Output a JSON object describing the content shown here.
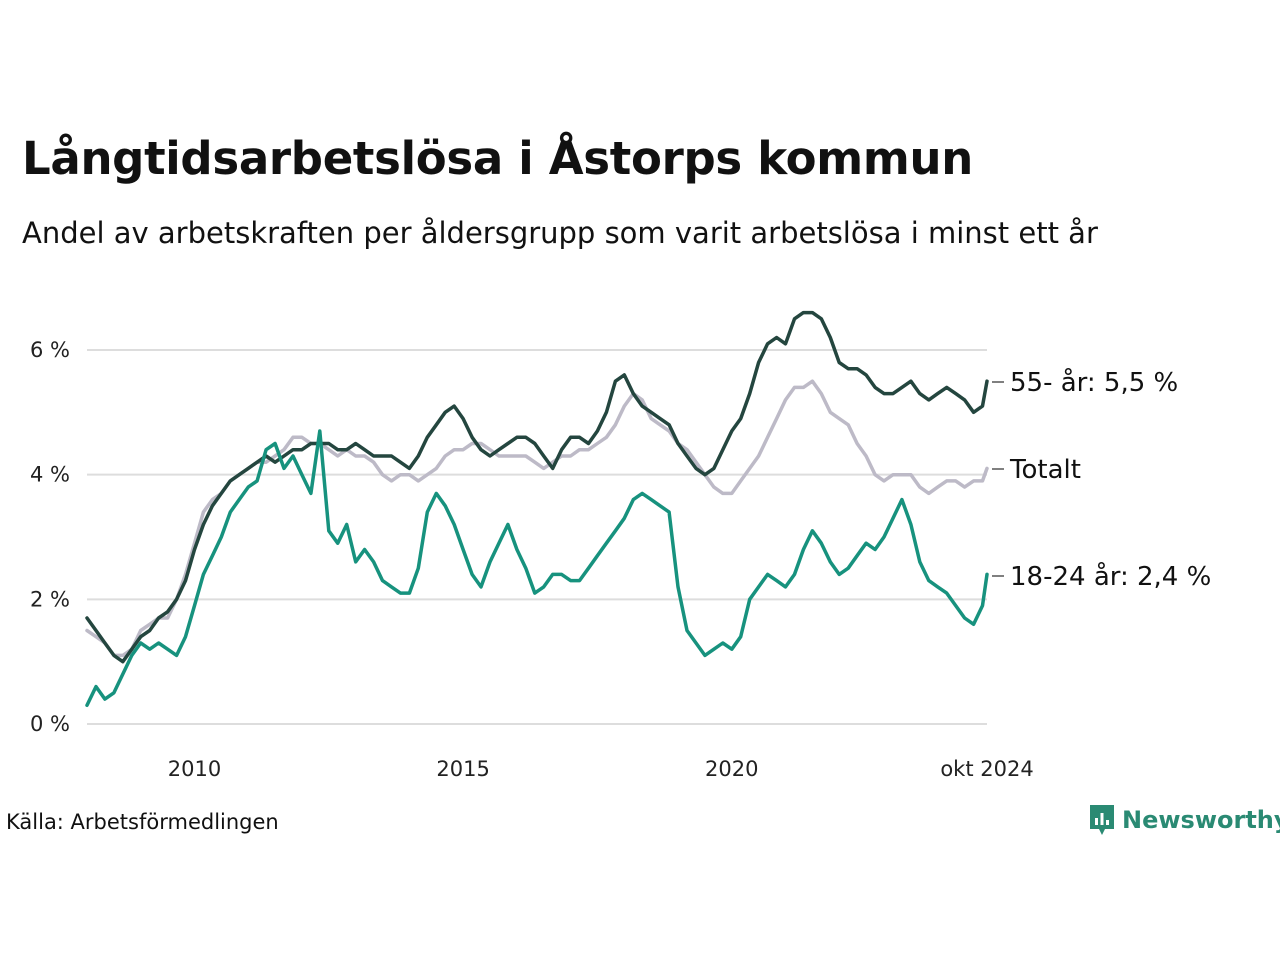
{
  "title": "Långtidsarbetslösa i Åstorps kommun",
  "subtitle": "Andel av arbetskraften per åldersgrupp som varit arbetslösa i minst ett år",
  "source": "Källa: Arbetsförmedlingen",
  "logo_text": "Newsworthy",
  "colors": {
    "total": "#bdbac7",
    "age55": "#24463f",
    "age18": "#17927e",
    "grid": "#dddddd",
    "logo": "#2a8a73"
  },
  "chart_data": {
    "type": "line",
    "xlim": [
      "2008-01",
      "2024-10"
    ],
    "ylim": [
      0,
      7
    ],
    "y_ticks": [
      {
        "value": 0,
        "label": "0 %"
      },
      {
        "value": 2,
        "label": "2 %"
      },
      {
        "value": 4,
        "label": "4 %"
      },
      {
        "value": 6,
        "label": "6 %"
      }
    ],
    "x_ticks": [
      {
        "value": "2010-01",
        "label": "2010"
      },
      {
        "value": "2015-01",
        "label": "2015"
      },
      {
        "value": "2020-01",
        "label": "2020"
      },
      {
        "value": "2024-10",
        "label": "okt 2024"
      }
    ],
    "x": [
      "2008-01",
      "2008-03",
      "2008-05",
      "2008-07",
      "2008-09",
      "2008-11",
      "2009-01",
      "2009-03",
      "2009-05",
      "2009-07",
      "2009-09",
      "2009-11",
      "2010-01",
      "2010-03",
      "2010-05",
      "2010-07",
      "2010-09",
      "2010-11",
      "2011-01",
      "2011-03",
      "2011-05",
      "2011-07",
      "2011-09",
      "2011-11",
      "2012-01",
      "2012-03",
      "2012-05",
      "2012-07",
      "2012-09",
      "2012-11",
      "2013-01",
      "2013-03",
      "2013-05",
      "2013-07",
      "2013-09",
      "2013-11",
      "2014-01",
      "2014-03",
      "2014-05",
      "2014-07",
      "2014-09",
      "2014-11",
      "2015-01",
      "2015-03",
      "2015-05",
      "2015-07",
      "2015-09",
      "2015-11",
      "2016-01",
      "2016-03",
      "2016-05",
      "2016-07",
      "2016-09",
      "2016-11",
      "2017-01",
      "2017-03",
      "2017-05",
      "2017-07",
      "2017-09",
      "2017-11",
      "2018-01",
      "2018-03",
      "2018-05",
      "2018-07",
      "2018-09",
      "2018-11",
      "2019-01",
      "2019-03",
      "2019-05",
      "2019-07",
      "2019-09",
      "2019-11",
      "2020-01",
      "2020-03",
      "2020-05",
      "2020-07",
      "2020-09",
      "2020-11",
      "2021-01",
      "2021-03",
      "2021-05",
      "2021-07",
      "2021-09",
      "2021-11",
      "2022-01",
      "2022-03",
      "2022-05",
      "2022-07",
      "2022-09",
      "2022-11",
      "2023-01",
      "2023-03",
      "2023-05",
      "2023-07",
      "2023-09",
      "2023-11",
      "2024-01",
      "2024-03",
      "2024-05",
      "2024-07",
      "2024-09",
      "2024-10"
    ],
    "series": [
      {
        "name": "Totalt",
        "label": "Totalt",
        "color": "#bdbac7",
        "values": [
          1.5,
          1.4,
          1.3,
          1.1,
          1.1,
          1.2,
          1.5,
          1.6,
          1.7,
          1.7,
          2.0,
          2.4,
          2.9,
          3.4,
          3.6,
          3.7,
          3.9,
          4.0,
          4.1,
          4.2,
          4.2,
          4.3,
          4.4,
          4.6,
          4.6,
          4.5,
          4.5,
          4.4,
          4.3,
          4.4,
          4.3,
          4.3,
          4.2,
          4.0,
          3.9,
          4.0,
          4.0,
          3.9,
          4.0,
          4.1,
          4.3,
          4.4,
          4.4,
          4.5,
          4.5,
          4.4,
          4.3,
          4.3,
          4.3,
          4.3,
          4.2,
          4.1,
          4.2,
          4.3,
          4.3,
          4.4,
          4.4,
          4.5,
          4.6,
          4.8,
          5.1,
          5.3,
          5.2,
          4.9,
          4.8,
          4.7,
          4.5,
          4.4,
          4.2,
          4.0,
          3.8,
          3.7,
          3.7,
          3.9,
          4.1,
          4.3,
          4.6,
          4.9,
          5.2,
          5.4,
          5.4,
          5.5,
          5.3,
          5.0,
          4.9,
          4.8,
          4.5,
          4.3,
          4.0,
          3.9,
          4.0,
          4.0,
          4.0,
          3.8,
          3.7,
          3.8,
          3.9,
          3.9,
          3.8,
          3.9,
          3.9,
          4.1
        ]
      },
      {
        "name": "55- år",
        "label": "55- år: 5,5 %",
        "color": "#24463f",
        "values": [
          1.7,
          1.5,
          1.3,
          1.1,
          1.0,
          1.2,
          1.4,
          1.5,
          1.7,
          1.8,
          2.0,
          2.3,
          2.8,
          3.2,
          3.5,
          3.7,
          3.9,
          4.0,
          4.1,
          4.2,
          4.3,
          4.2,
          4.3,
          4.4,
          4.4,
          4.5,
          4.5,
          4.5,
          4.4,
          4.4,
          4.5,
          4.4,
          4.3,
          4.3,
          4.3,
          4.2,
          4.1,
          4.3,
          4.6,
          4.8,
          5.0,
          5.1,
          4.9,
          4.6,
          4.4,
          4.3,
          4.4,
          4.5,
          4.6,
          4.6,
          4.5,
          4.3,
          4.1,
          4.4,
          4.6,
          4.6,
          4.5,
          4.7,
          5.0,
          5.5,
          5.6,
          5.3,
          5.1,
          5.0,
          4.9,
          4.8,
          4.5,
          4.3,
          4.1,
          4.0,
          4.1,
          4.4,
          4.7,
          4.9,
          5.3,
          5.8,
          6.1,
          6.2,
          6.1,
          6.5,
          6.6,
          6.6,
          6.5,
          6.2,
          5.8,
          5.7,
          5.7,
          5.6,
          5.4,
          5.3,
          5.3,
          5.4,
          5.5,
          5.3,
          5.2,
          5.3,
          5.4,
          5.3,
          5.2,
          5.0,
          5.1,
          5.5
        ]
      },
      {
        "name": "18-24 år",
        "label": "18-24 år: 2,4 %",
        "color": "#17927e",
        "values": [
          0.3,
          0.6,
          0.4,
          0.5,
          0.8,
          1.1,
          1.3,
          1.2,
          1.3,
          1.2,
          1.1,
          1.4,
          1.9,
          2.4,
          2.7,
          3.0,
          3.4,
          3.6,
          3.8,
          3.9,
          4.4,
          4.5,
          4.1,
          4.3,
          4.0,
          3.7,
          4.7,
          3.1,
          2.9,
          3.2,
          2.6,
          2.8,
          2.6,
          2.3,
          2.2,
          2.1,
          2.1,
          2.5,
          3.4,
          3.7,
          3.5,
          3.2,
          2.8,
          2.4,
          2.2,
          2.6,
          2.9,
          3.2,
          2.8,
          2.5,
          2.1,
          2.2,
          2.4,
          2.4,
          2.3,
          2.3,
          2.5,
          2.7,
          2.9,
          3.1,
          3.3,
          3.6,
          3.7,
          3.6,
          3.5,
          3.4,
          2.2,
          1.5,
          1.3,
          1.1,
          1.2,
          1.3,
          1.2,
          1.4,
          2.0,
          2.2,
          2.4,
          2.3,
          2.2,
          2.4,
          2.8,
          3.1,
          2.9,
          2.6,
          2.4,
          2.5,
          2.7,
          2.9,
          2.8,
          3.0,
          3.3,
          3.6,
          3.2,
          2.6,
          2.3,
          2.2,
          2.1,
          1.9,
          1.7,
          1.6,
          1.9,
          2.4
        ]
      }
    ]
  }
}
